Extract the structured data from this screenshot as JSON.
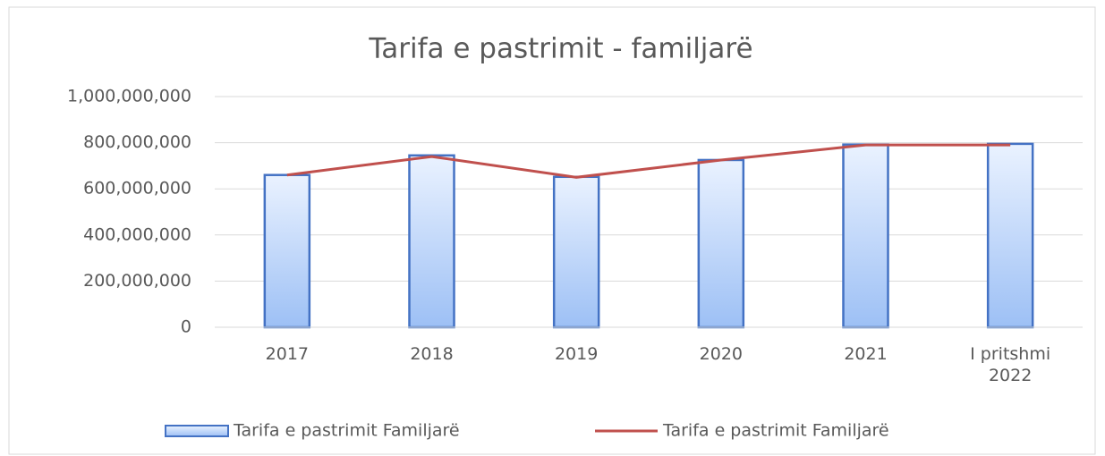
{
  "chart_data": {
    "type": "bar",
    "title": "Tarifa e pastrimit  - familjarë",
    "categories": [
      "2017",
      "2018",
      "2019",
      "2020",
      "2021",
      "I pritshmi 2022"
    ],
    "series": [
      {
        "name": "Tarifa e pastrimit Familjarë",
        "type": "bar",
        "color": "#4472c4",
        "values": [
          660000000,
          745000000,
          652000000,
          725000000,
          792000000,
          795000000
        ]
      },
      {
        "name": "Tarifa e pastrimit Familjarë",
        "type": "line",
        "color": "#c0504d",
        "values": [
          660000000,
          740000000,
          650000000,
          725000000,
          790000000,
          790000000
        ]
      }
    ],
    "ylim": [
      0,
      1000000000
    ],
    "yticks": [
      0,
      {
        "value": 200000000,
        "label": "200,000,000"
      },
      {
        "value": 400000000,
        "label": "400,000,000"
      },
      {
        "value": 600000000,
        "label": "600,000,000"
      },
      {
        "value": 800000000,
        "label": "800,000,000"
      },
      {
        "value": 1000000000,
        "label": "1,000,000,000"
      }
    ],
    "grid": true,
    "legend": "bottom"
  }
}
